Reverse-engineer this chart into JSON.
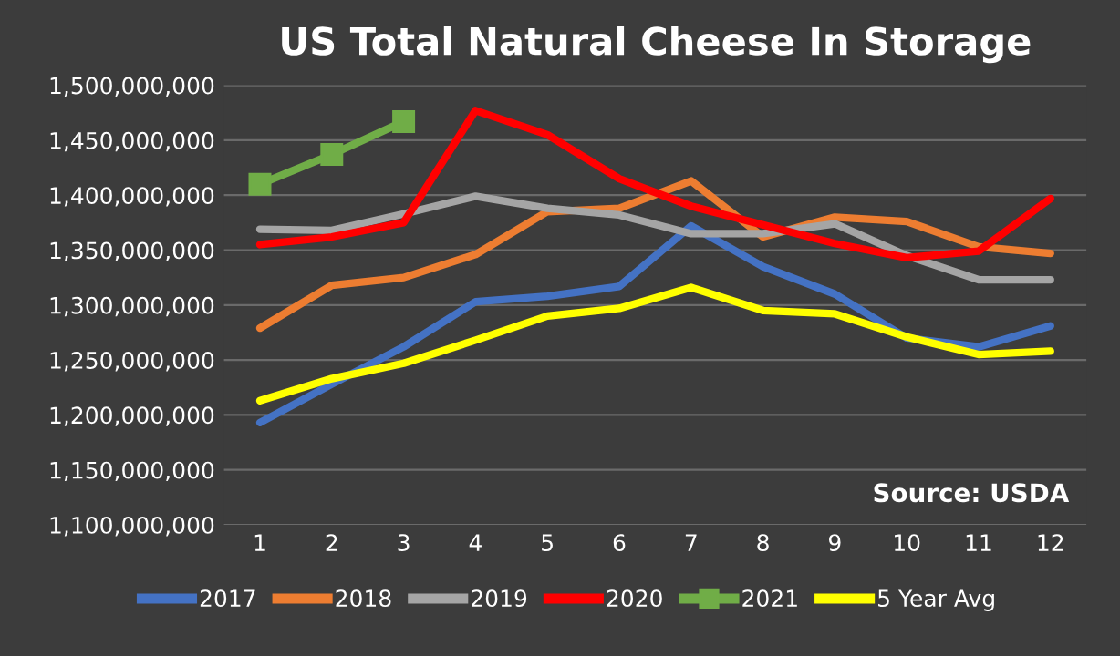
{
  "chart_data": {
    "type": "line",
    "title": "US Total Natural Cheese In Storage",
    "categories": [
      "1",
      "2",
      "3",
      "4",
      "5",
      "6",
      "7",
      "8",
      "9",
      "10",
      "11",
      "12"
    ],
    "series": [
      {
        "name": "2017",
        "color": "#4472c4",
        "values": [
          1193000000,
          1228000000,
          1262000000,
          1303000000,
          1308000000,
          1317000000,
          1372000000,
          1335000000,
          1310000000,
          1270000000,
          1262000000,
          1281000000
        ]
      },
      {
        "name": "2018",
        "color": "#ed7d31",
        "values": [
          1279000000,
          1318000000,
          1325000000,
          1346000000,
          1385000000,
          1388000000,
          1413000000,
          1362000000,
          1380000000,
          1376000000,
          1353000000,
          1347000000
        ]
      },
      {
        "name": "2019",
        "color": "#a5a5a5",
        "values": [
          1369000000,
          1368000000,
          1383000000,
          1399000000,
          1388000000,
          1382000000,
          1365000000,
          1365000000,
          1374000000,
          1345000000,
          1323000000,
          1323000000
        ]
      },
      {
        "name": "2020",
        "color": "#ff0000",
        "values": [
          1355000000,
          1362000000,
          1375000000,
          1477000000,
          1455000000,
          1415000000,
          1390000000,
          1373000000,
          1356000000,
          1343000000,
          1349000000,
          1397000000
        ]
      },
      {
        "name": "2021",
        "color": "#70ad47",
        "marker": "square",
        "values": [
          1410000000,
          1437000000,
          1467000000,
          null,
          null,
          null,
          null,
          null,
          null,
          null,
          null,
          null
        ]
      },
      {
        "name": "5 Year Avg",
        "color": "#ffff00",
        "values": [
          1213000000,
          1233000000,
          1247000000,
          1268000000,
          1290000000,
          1297000000,
          1316000000,
          1295000000,
          1292000000,
          1271000000,
          1255000000,
          1258000000
        ]
      }
    ],
    "ylim": [
      1100000000,
      1500000000
    ],
    "yticks": [
      {
        "value": 1100000000,
        "label": "1,100,000,000"
      },
      {
        "value": 1150000000,
        "label": "1,150,000,000"
      },
      {
        "value": 1200000000,
        "label": "1,200,000,000"
      },
      {
        "value": 1250000000,
        "label": "1,250,000,000"
      },
      {
        "value": 1300000000,
        "label": "1,300,000,000"
      },
      {
        "value": 1350000000,
        "label": "1,350,000,000"
      },
      {
        "value": 1400000000,
        "label": "1,400,000,000"
      },
      {
        "value": 1450000000,
        "label": "1,450,000,000"
      },
      {
        "value": 1500000000,
        "label": "1,500,000,000"
      }
    ],
    "grid": "y",
    "legend": "bottom",
    "annotations": [
      "Source: USDA"
    ]
  }
}
